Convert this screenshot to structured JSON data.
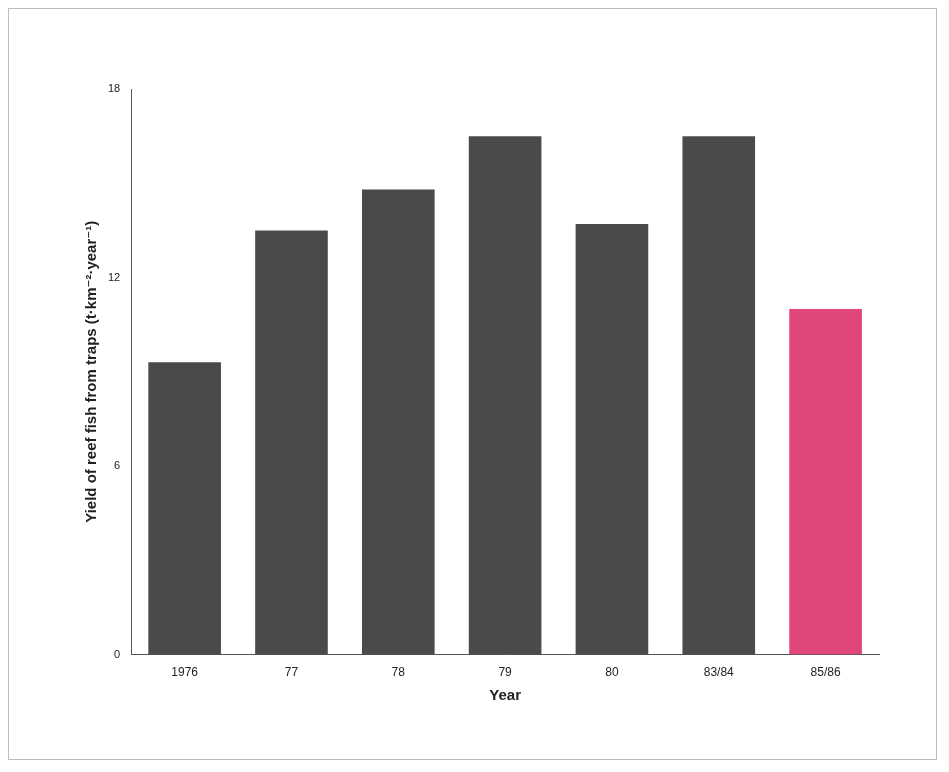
{
  "chart_data": {
    "type": "bar",
    "ylabel": "Yield of reef fish from traps (t·km⁻²·year⁻¹)",
    "xlabel": "Year",
    "categories": [
      "1976",
      "77",
      "78",
      "79",
      "80",
      "83/84",
      "85/86"
    ],
    "values": [
      9.3,
      13.5,
      14.8,
      16.5,
      13.7,
      16.5,
      11.0
    ],
    "colors": [
      "#4a4a4a",
      "#4a4a4a",
      "#4a4a4a",
      "#4a4a4a",
      "#4a4a4a",
      "#4a4a4a",
      "#e0457b"
    ],
    "ylim": [
      0,
      18
    ],
    "yticks": [
      0,
      6,
      12,
      18
    ],
    "grid": false
  }
}
